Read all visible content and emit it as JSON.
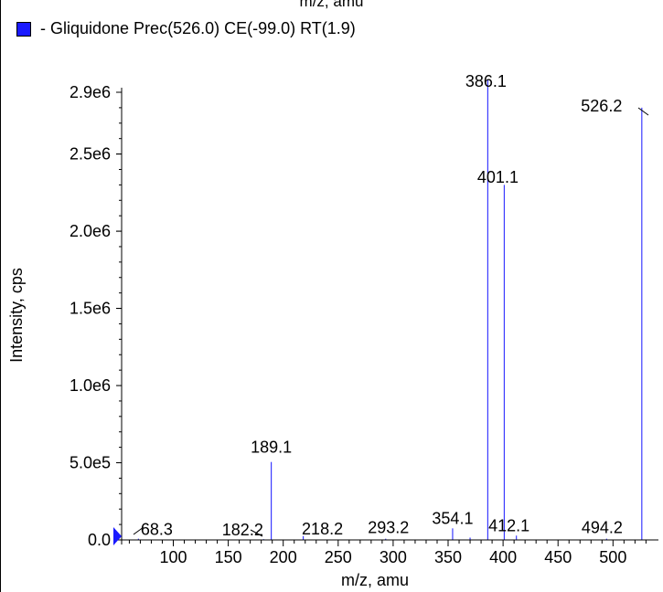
{
  "cut_off_top_label": "m/z, amu",
  "legend": {
    "text": "- Gliquidone Prec(526.0) CE(-99.0) RT(1.9)",
    "swatch_color": "#1a1aff"
  },
  "colors": {
    "peak": "#3b3bff",
    "axis": "#000000",
    "marker": "#1a1aff"
  },
  "chart_data": {
    "type": "bar",
    "title": "",
    "xlabel": "m/z, amu",
    "ylabel": "Intensity, cps",
    "xlim": [
      53,
      538
    ],
    "ylim": [
      0,
      3000000
    ],
    "xticks": [
      100,
      150,
      200,
      250,
      300,
      350,
      400,
      450,
      500
    ],
    "yticks": [
      {
        "value": 0,
        "label": "0.0"
      },
      {
        "value": 500000,
        "label": "5.0e5"
      },
      {
        "value": 1000000,
        "label": "1.0e6"
      },
      {
        "value": 1500000,
        "label": "1.5e6"
      },
      {
        "value": 2000000,
        "label": "2.0e6"
      },
      {
        "value": 2500000,
        "label": "2.5e6"
      },
      {
        "value": 2900000,
        "label": "2.9e6"
      }
    ],
    "grid": false,
    "peaks": [
      {
        "mz": 68.3,
        "intensity": 8000
      },
      {
        "mz": 182.2,
        "intensity": 5000
      },
      {
        "mz": 189.1,
        "intensity": 505000
      },
      {
        "mz": 218.2,
        "intensity": 25000
      },
      {
        "mz": 293.2,
        "intensity": 8000
      },
      {
        "mz": 354.1,
        "intensity": 75000
      },
      {
        "mz": 370.0,
        "intensity": 15000
      },
      {
        "mz": 386.1,
        "intensity": 2980000
      },
      {
        "mz": 401.1,
        "intensity": 2300000
      },
      {
        "mz": 412.1,
        "intensity": 28000
      },
      {
        "mz": 494.2,
        "intensity": 8000
      },
      {
        "mz": 526.2,
        "intensity": 2800000
      }
    ],
    "peak_labels": [
      {
        "text": "68.3",
        "mz": 68.3,
        "intensity": 8000
      },
      {
        "text": "182.2",
        "mz": 182.2,
        "intensity": 5000
      },
      {
        "text": "189.1",
        "mz": 189.1,
        "intensity": 505000
      },
      {
        "text": "218.2",
        "mz": 218.2,
        "intensity": 25000
      },
      {
        "text": "293.2",
        "mz": 293.2,
        "intensity": 8000
      },
      {
        "text": "354.1",
        "mz": 354.1,
        "intensity": 75000
      },
      {
        "text": "386.1",
        "mz": 386.1,
        "intensity": 2980000
      },
      {
        "text": "401.1",
        "mz": 401.1,
        "intensity": 2300000
      },
      {
        "text": "412.1",
        "mz": 412.1,
        "intensity": 28000
      },
      {
        "text": "494.2",
        "mz": 494.2,
        "intensity": 8000
      },
      {
        "text": "526.2",
        "mz": 526.2,
        "intensity": 2800000
      }
    ]
  }
}
